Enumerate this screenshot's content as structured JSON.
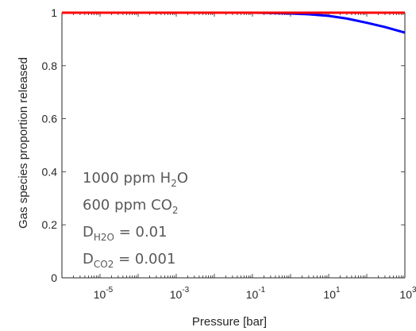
{
  "chart_data": {
    "type": "line",
    "xlabel": "Pressure [bar]",
    "ylabel": "Gas species proportion released",
    "x_scale": "log",
    "xlim": [
      1e-06,
      1000
    ],
    "ylim": [
      0,
      1
    ],
    "x_ticks": [
      {
        "value": 1e-05,
        "base": "10",
        "exp": "-5"
      },
      {
        "value": 0.001,
        "base": "10",
        "exp": "-3"
      },
      {
        "value": 0.1,
        "base": "10",
        "exp": "-1"
      },
      {
        "value": 10,
        "base": "10",
        "exp": "1"
      },
      {
        "value": 1000,
        "base": "10",
        "exp": "3"
      }
    ],
    "y_ticks": [
      {
        "value": 0,
        "label": "0"
      },
      {
        "value": 0.2,
        "label": "0.2"
      },
      {
        "value": 0.4,
        "label": "0.4"
      },
      {
        "value": 0.6,
        "label": "0.6"
      },
      {
        "value": 0.8,
        "label": "0.8"
      },
      {
        "value": 1,
        "label": "1"
      }
    ],
    "grid": false,
    "series": [
      {
        "color": "#0000ff",
        "x": [
          1e-06,
          0.0001,
          0.01,
          0.1,
          0.3,
          1,
          3,
          10,
          30,
          100,
          300,
          1000
        ],
        "y": [
          1.0,
          1.0,
          1.0,
          1.0,
          0.999,
          0.997,
          0.994,
          0.988,
          0.978,
          0.962,
          0.946,
          0.925
        ]
      },
      {
        "color": "#ff0000",
        "x": [
          1e-06,
          0.001,
          1,
          1000
        ],
        "y": [
          1.0,
          1.0,
          1.0,
          1.0
        ]
      }
    ],
    "annotations": [
      {
        "parts": [
          {
            "t": "1000 ppm H"
          },
          {
            "t": "2",
            "sub": true
          },
          {
            "t": "O"
          }
        ]
      },
      {
        "parts": [
          {
            "t": "600 ppm CO"
          },
          {
            "t": "2",
            "sub": true
          }
        ]
      },
      {
        "parts": [
          {
            "t": "D"
          },
          {
            "t": "H2O",
            "sub": true
          },
          {
            "t": " = 0.01"
          }
        ]
      },
      {
        "parts": [
          {
            "t": "D"
          },
          {
            "t": "CO2",
            "sub": true
          },
          {
            "t": " = 0.001"
          }
        ]
      }
    ]
  }
}
